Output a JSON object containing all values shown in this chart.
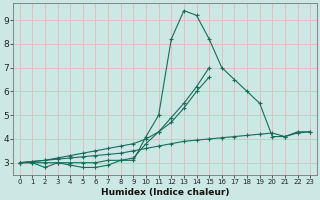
{
  "xlabel": "Humidex (Indice chaleur)",
  "background_color": "#cce8e5",
  "grid_color": "#e8b8b8",
  "line_color": "#1a6b5a",
  "xlim": [
    -0.5,
    23.5
  ],
  "ylim": [
    2.5,
    9.7
  ],
  "xticks": [
    0,
    1,
    2,
    3,
    4,
    5,
    6,
    7,
    8,
    9,
    10,
    11,
    12,
    13,
    14,
    15,
    16,
    17,
    18,
    19,
    20,
    21,
    22,
    23
  ],
  "yticks": [
    3,
    4,
    5,
    6,
    7,
    8,
    9
  ],
  "series": [
    {
      "x": [
        0,
        1,
        2,
        3,
        4,
        5,
        6,
        7,
        8,
        9,
        10,
        11,
        12,
        13,
        14,
        15,
        16,
        17,
        18,
        19,
        20,
        21,
        22,
        23
      ],
      "y": [
        3.0,
        3.0,
        2.8,
        3.0,
        2.9,
        2.8,
        2.8,
        2.9,
        3.1,
        3.1,
        4.1,
        5.0,
        8.2,
        9.4,
        9.2,
        8.2,
        7.0,
        6.5,
        6.0,
        5.5,
        4.1,
        4.1,
        4.3,
        4.3
      ]
    },
    {
      "x": [
        0,
        1,
        2,
        3,
        4,
        5,
        6,
        7,
        8,
        9,
        10,
        11,
        12,
        13,
        14,
        15,
        16,
        17,
        18,
        19,
        20,
        21,
        22,
        23
      ],
      "y": [
        3.0,
        3.0,
        3.0,
        3.0,
        3.0,
        3.0,
        3.0,
        3.1,
        3.1,
        3.2,
        3.8,
        4.3,
        4.9,
        5.5,
        6.2,
        7.0,
        null,
        null,
        null,
        null,
        null,
        null,
        null,
        null
      ]
    },
    {
      "x": [
        0,
        1,
        2,
        3,
        4,
        5,
        6,
        7,
        8,
        9,
        10,
        11,
        12,
        13,
        14,
        15,
        16,
        17,
        18,
        19,
        20,
        21,
        22,
        23
      ],
      "y": [
        3.0,
        3.05,
        3.1,
        3.15,
        3.2,
        3.25,
        3.3,
        3.35,
        3.4,
        3.5,
        3.6,
        3.7,
        3.8,
        3.9,
        3.95,
        4.0,
        4.05,
        4.1,
        4.15,
        4.2,
        4.25,
        4.1,
        4.25,
        4.3
      ]
    },
    {
      "x": [
        0,
        1,
        2,
        3,
        4,
        5,
        6,
        7,
        8,
        9,
        10,
        11,
        12,
        13,
        14,
        15,
        16,
        17,
        18,
        19,
        20,
        21,
        22,
        23
      ],
      "y": [
        3.0,
        3.05,
        3.1,
        3.2,
        3.3,
        3.4,
        3.5,
        3.6,
        3.7,
        3.8,
        4.0,
        4.3,
        4.7,
        5.3,
        6.0,
        6.6,
        null,
        null,
        null,
        null,
        null,
        null,
        null,
        null
      ]
    }
  ]
}
